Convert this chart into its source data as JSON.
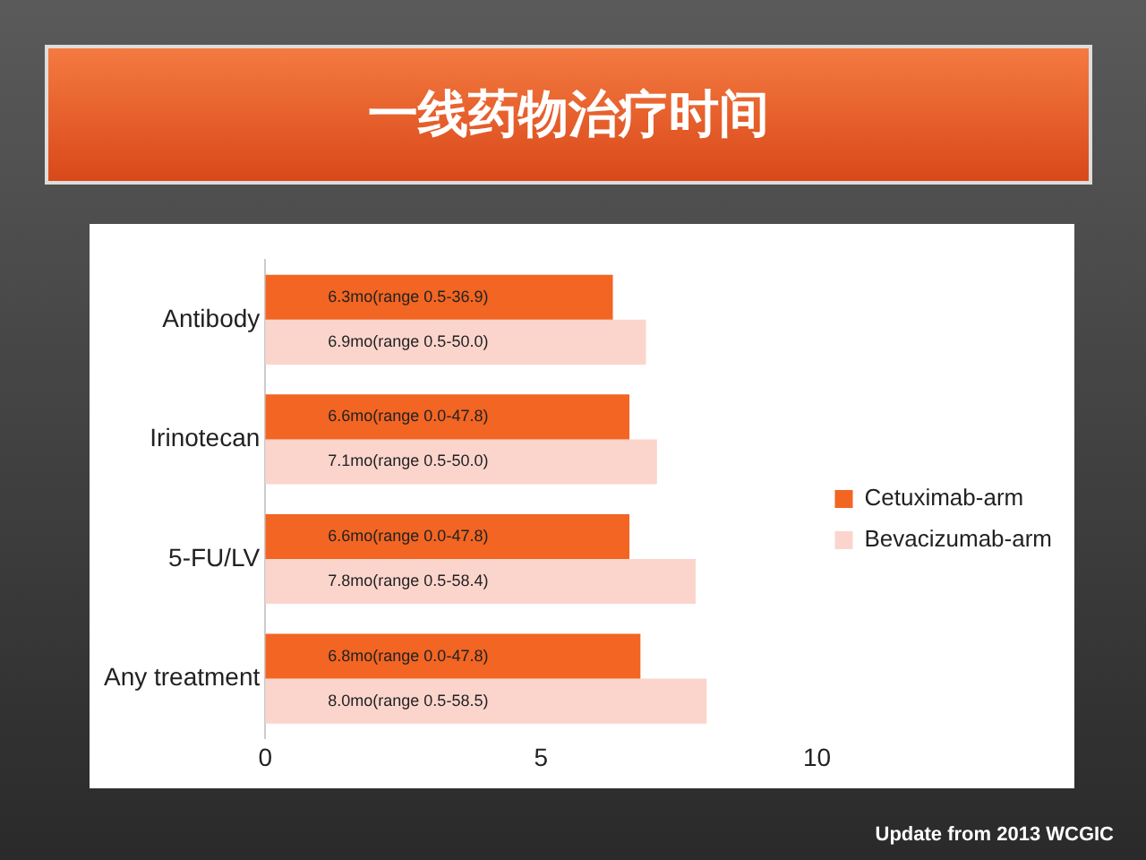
{
  "chart_data": {
    "type": "bar",
    "title": "一线药物治疗时间",
    "orientation": "horizontal",
    "categories": [
      "Antibody",
      "Irinotecan",
      "5-FU/LV",
      "Any treatment"
    ],
    "series": [
      {
        "name": "Cetuximab-arm",
        "color": "#f26522",
        "values": [
          6.3,
          6.6,
          6.6,
          6.8
        ],
        "value_labels": [
          "6.3mo(range 0.5-36.9)",
          "6.6mo(range 0.0-47.8)",
          "6.6mo(range 0.0-47.8)",
          "6.8mo(range 0.0-47.8)"
        ]
      },
      {
        "name": "Bevacizumab-arm",
        "color": "#fbd5cc",
        "values": [
          6.9,
          7.1,
          7.8,
          8.0
        ],
        "value_labels": [
          "6.9mo(range 0.5-50.0)",
          "7.1mo(range 0.5-50.0)",
          "7.8mo(range 0.5-58.4)",
          "8.0mo(range 0.5-58.5)"
        ]
      }
    ],
    "xlim": [
      0,
      10
    ],
    "xticks": [
      0,
      5,
      10
    ],
    "grid": false,
    "legend": "right",
    "annotations": [
      "Update from 2013 WCGIC"
    ]
  }
}
